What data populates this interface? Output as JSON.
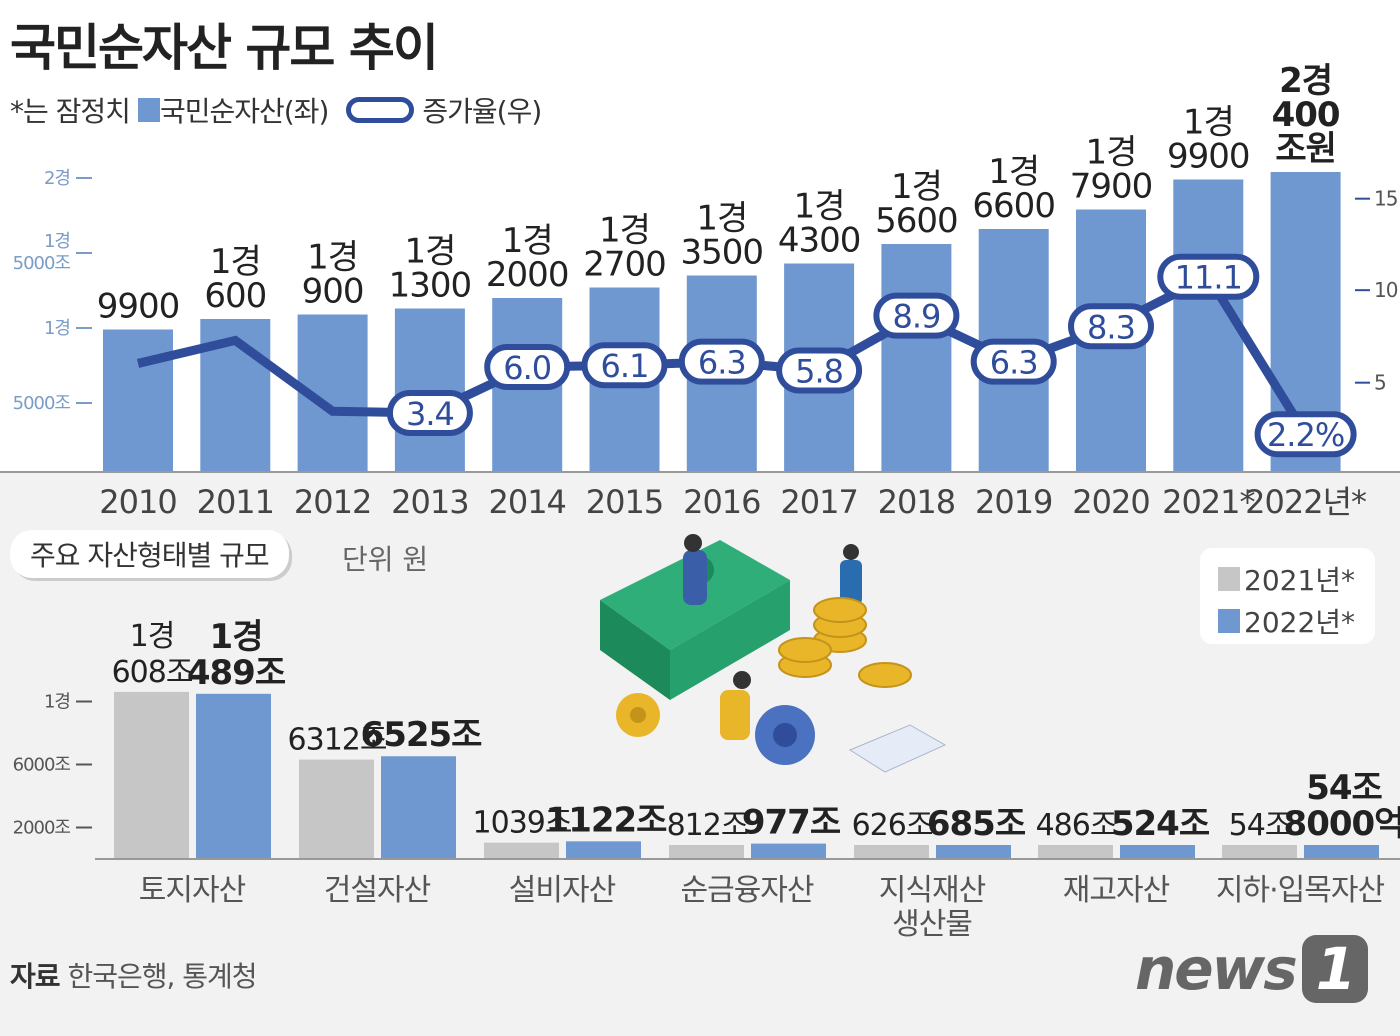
{
  "title": "국민순자산 규모 추이",
  "legend": {
    "note": "*는 잠정치",
    "bar": "국민순자산(좌)",
    "line": "증가율(우)"
  },
  "colors": {
    "bar": "#7098d0",
    "line": "#2f4d9a",
    "gray_bar": "#c6c6c6",
    "lower_bg": "#f2f2f2"
  },
  "chart_data": [
    {
      "type": "bar+line",
      "categories": [
        "2010",
        "2011",
        "2012",
        "2013",
        "2014",
        "2015",
        "2016",
        "2017",
        "2018",
        "2019",
        "2020",
        "2021*",
        "2022년*"
      ],
      "series": [
        {
          "name": "국민순자산(좌)",
          "axis": "left",
          "unit": "조원",
          "values": [
            9900,
            10600,
            10900,
            11300,
            12000,
            12700,
            13500,
            14300,
            15600,
            16600,
            17900,
            19900,
            20400
          ],
          "labels": [
            [
              "9900"
            ],
            [
              "1경",
              "600"
            ],
            [
              "1경",
              "900"
            ],
            [
              "1경",
              "1300"
            ],
            [
              "1경",
              "2000"
            ],
            [
              "1경",
              "2700"
            ],
            [
              "1경",
              "3500"
            ],
            [
              "1경",
              "4300"
            ],
            [
              "1경",
              "5600"
            ],
            [
              "1경",
              "6600"
            ],
            [
              "1경",
              "7900"
            ],
            [
              "1경",
              "9900"
            ],
            [
              "2경",
              "400",
              "조원"
            ]
          ]
        },
        {
          "name": "증가율(우)",
          "axis": "right",
          "unit": "%",
          "values": [
            6.2,
            7.5,
            3.5,
            3.4,
            6.0,
            6.1,
            6.3,
            5.8,
            8.9,
            6.3,
            8.3,
            11.1,
            2.2
          ],
          "labels": [
            "",
            "",
            "",
            "3.4",
            "6.0",
            "6.1",
            "6.3",
            "5.8",
            "8.9",
            "6.3",
            "8.3",
            "11.1",
            "2.2%"
          ]
        }
      ],
      "left_ticks": [
        {
          "v": 5000,
          "label": [
            "5000조"
          ]
        },
        {
          "v": 10000,
          "label": [
            "1경"
          ]
        },
        {
          "v": 15000,
          "label": [
            "1경",
            "5000조"
          ]
        },
        {
          "v": 20000,
          "label": [
            "2경"
          ]
        }
      ],
      "right_ticks": [
        {
          "v": 5,
          "label": "5"
        },
        {
          "v": 10,
          "label": "10"
        },
        {
          "v": 15,
          "label": "15"
        }
      ],
      "ylim_left": [
        0,
        20400
      ],
      "ylim_right": [
        0,
        15
      ]
    },
    {
      "type": "bar",
      "title": "주요 자산형태별 규모",
      "unit_label": "단위 원",
      "categories": [
        [
          "토지자산"
        ],
        [
          "건설자산"
        ],
        [
          "설비자산"
        ],
        [
          "순금융자산"
        ],
        [
          "지식재산",
          "생산물"
        ],
        [
          "재고자산"
        ],
        [
          "지하·입목자산"
        ]
      ],
      "series": [
        {
          "name": "2021년*",
          "values": [
            10608,
            6312,
            1039,
            812,
            626,
            486,
            54
          ],
          "labels": [
            [
              "1경",
              "608조"
            ],
            [
              "6312조"
            ],
            [
              "1039조"
            ],
            [
              "812조"
            ],
            [
              "626조"
            ],
            [
              "486조"
            ],
            [
              "54조"
            ]
          ]
        },
        {
          "name": "2022년*",
          "values": [
            10489,
            6525,
            1122,
            977,
            685,
            524,
            54.8
          ],
          "labels": [
            [
              "1경",
              "489조"
            ],
            [
              "6525조"
            ],
            [
              "1122조"
            ],
            [
              "977조"
            ],
            [
              "685조"
            ],
            [
              "524조"
            ],
            [
              "54조",
              "8000억"
            ]
          ]
        }
      ],
      "ticks": [
        {
          "v": 2000,
          "label": "2000조"
        },
        {
          "v": 6000,
          "label": "6000조"
        },
        {
          "v": 10000,
          "label": "1경"
        }
      ],
      "legend_placement": "top-right"
    }
  ],
  "lower": {
    "subtitle": "주요 자산형태별 규모",
    "unit": "단위 원",
    "legend": [
      "2021년*",
      "2022년*"
    ]
  },
  "source": {
    "label": "자료",
    "text": "한국은행, 통계청"
  },
  "logo": {
    "text": "news",
    "mark": "1"
  }
}
